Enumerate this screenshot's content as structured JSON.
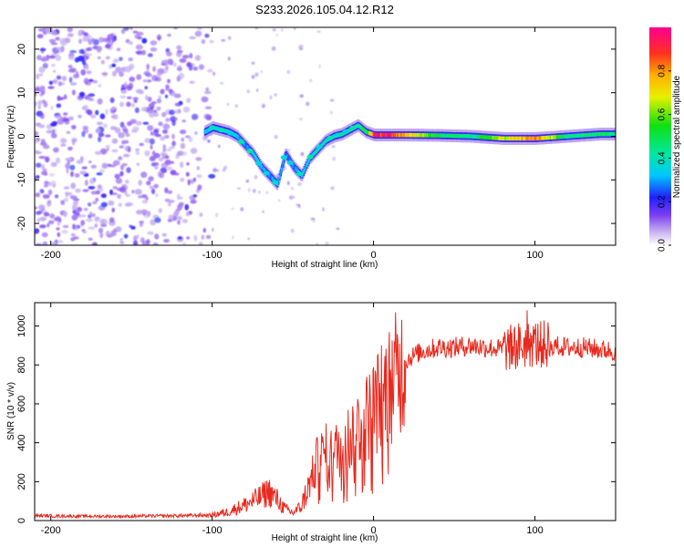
{
  "title": "S233.2026.105.04.12.R12",
  "chart_data": [
    {
      "type": "heatmap",
      "title": "S233.2026.105.04.12.R12",
      "xlabel": "Height of straight line (km)",
      "ylabel": "Frequency (Hz)",
      "xlim": [
        -210,
        150
      ],
      "ylim": [
        -25,
        25
      ],
      "xticks": [
        -200,
        -100,
        0,
        100
      ],
      "yticks": [
        -20,
        -10,
        0,
        10,
        20
      ],
      "colorbar": {
        "label": "Normalized spectral amplitude",
        "range": [
          0,
          1
        ],
        "ticks": [
          0.0,
          0.2,
          0.4,
          0.6,
          0.8
        ]
      },
      "ridge": {
        "x": [
          -105,
          -100,
          -95,
          -90,
          -85,
          -80,
          -75,
          -70,
          -65,
          -60,
          -55,
          -50,
          -45,
          -40,
          -35,
          -30,
          -25,
          -20,
          -15,
          -10,
          -5,
          0,
          10,
          20,
          40,
          60,
          80,
          100,
          120,
          140,
          150
        ],
        "freq": [
          1,
          2,
          1.5,
          1,
          0,
          -2,
          -4,
          -7,
          -9,
          -11,
          -4,
          -7,
          -9,
          -5,
          -3,
          -1,
          0,
          0.5,
          1.5,
          2.5,
          1,
          0.3,
          0.3,
          0.3,
          0.2,
          0,
          -0.5,
          -0.5,
          0,
          0.5,
          0.5
        ],
        "amplitude": [
          0.35,
          0.4,
          0.35,
          0.4,
          0.35,
          0.3,
          0.35,
          0.35,
          0.3,
          0.35,
          0.3,
          0.3,
          0.35,
          0.35,
          0.4,
          0.4,
          0.4,
          0.45,
          0.45,
          0.45,
          0.5,
          0.95,
          1.0,
          0.8,
          0.5,
          0.45,
          0.7,
          0.85,
          0.45,
          0.5,
          0.45
        ]
      },
      "noise_region_x": [
        -210,
        -100
      ]
    },
    {
      "type": "line",
      "xlabel": "Height of straight line (km)",
      "ylabel": "SNR (10 * v/v)",
      "xlim": [
        -210,
        150
      ],
      "ylim": [
        0,
        1120
      ],
      "xticks": [
        -200,
        -100,
        0,
        100
      ],
      "yticks": [
        0,
        200,
        400,
        600,
        800,
        1000
      ],
      "color": "#e8291e",
      "series": [
        {
          "name": "SNR",
          "x": [
            -210,
            -180,
            -150,
            -120,
            -100,
            -90,
            -80,
            -70,
            -65,
            -60,
            -55,
            -50,
            -45,
            -40,
            -35,
            -30,
            -25,
            -20,
            -15,
            -10,
            -5,
            0,
            5,
            10,
            15,
            20,
            25,
            30,
            40,
            50,
            60,
            70,
            80,
            90,
            100,
            110,
            120,
            130,
            140,
            150
          ],
          "y": [
            25,
            22,
            22,
            25,
            28,
            45,
            80,
            120,
            150,
            110,
            60,
            40,
            70,
            180,
            300,
            350,
            330,
            400,
            420,
            480,
            520,
            580,
            640,
            700,
            760,
            820,
            850,
            870,
            890,
            890,
            900,
            890,
            880,
            900,
            910,
            900,
            890,
            890,
            880,
            870
          ]
        }
      ]
    }
  ]
}
